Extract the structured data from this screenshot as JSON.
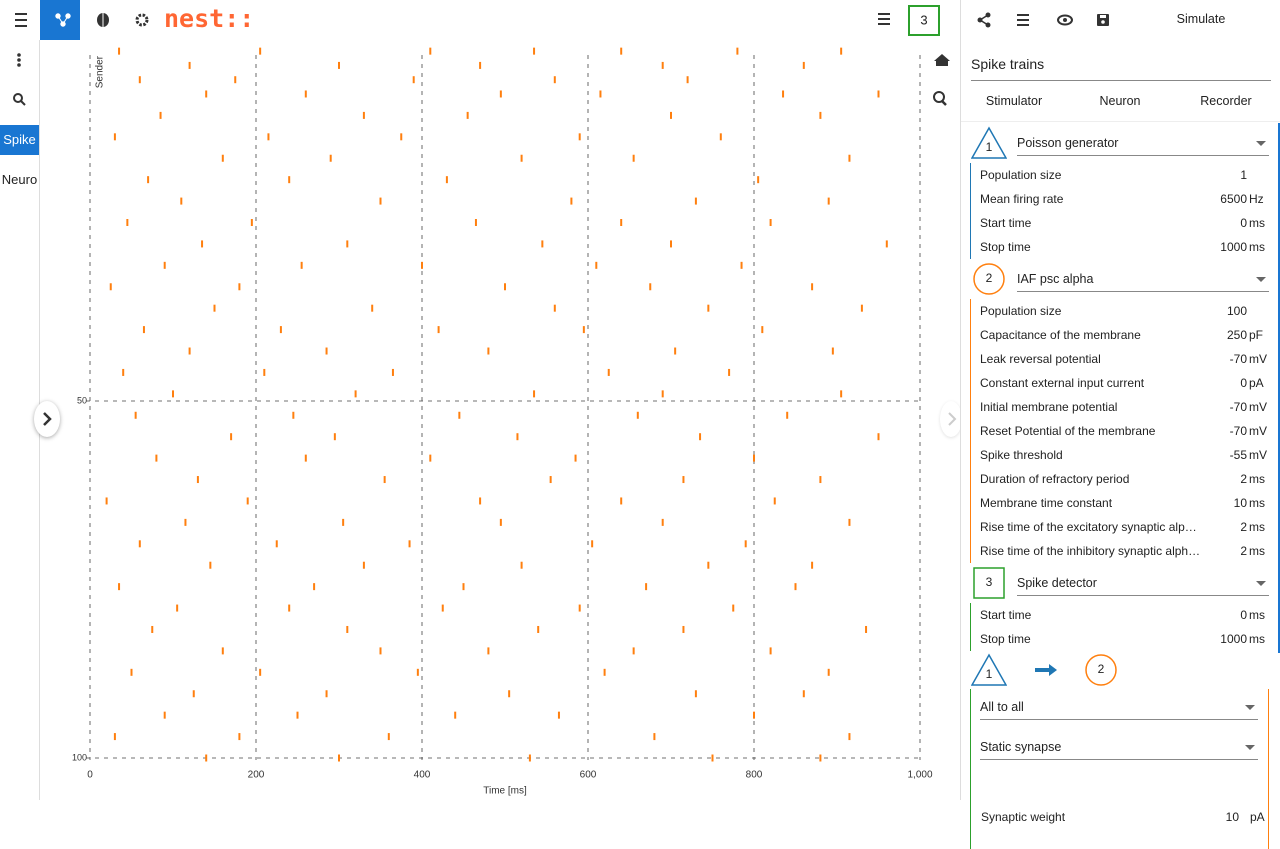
{
  "app": {
    "logo": "nest::",
    "sidebar": [
      "Spike",
      "Neuro"
    ],
    "badge": "3"
  },
  "chart_data": {
    "type": "scatter",
    "x_label": "Time [ms]",
    "y_label": "Sender",
    "color": "#ff7f0e",
    "xlim": [
      0,
      1000
    ],
    "ylim": [
      0,
      100
    ],
    "y_inverted": true,
    "grid": true,
    "xticks": [
      0,
      200,
      400,
      600,
      800,
      {
        "value": 1000,
        "label": "1,000"
      }
    ],
    "yticks": [
      50,
      100
    ],
    "x": [
      35,
      205,
      410,
      535,
      640,
      780,
      905,
      120,
      300,
      470,
      690,
      860,
      60,
      175,
      390,
      560,
      720,
      140,
      260,
      495,
      615,
      835,
      950,
      85,
      330,
      455,
      700,
      880,
      30,
      215,
      375,
      590,
      760,
      160,
      290,
      520,
      655,
      915,
      70,
      240,
      430,
      805,
      110,
      350,
      580,
      730,
      890,
      45,
      195,
      465,
      640,
      820,
      135,
      310,
      545,
      700,
      960,
      90,
      255,
      400,
      610,
      785,
      25,
      180,
      500,
      675,
      870,
      150,
      340,
      560,
      745,
      930,
      65,
      230,
      420,
      595,
      810,
      120,
      285,
      480,
      705,
      895,
      40,
      210,
      365,
      625,
      770,
      100,
      320,
      535,
      690,
      905,
      55,
      245,
      445,
      660,
      840,
      170,
      295,
      515,
      735,
      950,
      80,
      260,
      410,
      585,
      800,
      130,
      355,
      555,
      715,
      880,
      20,
      190,
      470,
      640,
      825,
      115,
      305,
      495,
      690,
      915,
      60,
      225,
      385,
      605,
      790,
      145,
      330,
      520,
      745,
      870,
      35,
      270,
      450,
      670,
      850,
      105,
      240,
      425,
      590,
      775,
      75,
      310,
      540,
      715,
      935,
      160,
      350,
      480,
      655,
      820,
      50,
      205,
      395,
      620,
      890,
      125,
      285,
      505,
      730,
      860,
      90,
      250,
      440,
      565,
      800,
      30,
      180,
      360,
      680,
      915,
      140,
      300,
      530,
      750,
      880
    ],
    "values": [
      1,
      1,
      1,
      1,
      1,
      1,
      1,
      3,
      3,
      3,
      3,
      3,
      5,
      5,
      5,
      5,
      5,
      7,
      7,
      7,
      7,
      7,
      7,
      10,
      10,
      10,
      10,
      10,
      13,
      13,
      13,
      13,
      13,
      16,
      16,
      16,
      16,
      16,
      19,
      19,
      19,
      19,
      22,
      22,
      22,
      22,
      22,
      25,
      25,
      25,
      25,
      25,
      28,
      28,
      28,
      28,
      28,
      31,
      31,
      31,
      31,
      31,
      34,
      34,
      34,
      34,
      34,
      37,
      37,
      37,
      37,
      37,
      40,
      40,
      40,
      40,
      40,
      43,
      43,
      43,
      43,
      43,
      46,
      46,
      46,
      46,
      46,
      49,
      49,
      49,
      49,
      49,
      52,
      52,
      52,
      52,
      52,
      55,
      55,
      55,
      55,
      55,
      58,
      58,
      58,
      58,
      58,
      61,
      61,
      61,
      61,
      61,
      64,
      64,
      64,
      64,
      64,
      67,
      67,
      67,
      67,
      67,
      70,
      70,
      70,
      70,
      70,
      73,
      73,
      73,
      73,
      73,
      76,
      76,
      76,
      76,
      76,
      79,
      79,
      79,
      79,
      79,
      82,
      82,
      82,
      82,
      82,
      85,
      85,
      85,
      85,
      85,
      88,
      88,
      88,
      88,
      88,
      91,
      91,
      91,
      91,
      91,
      94,
      94,
      94,
      94,
      94,
      97,
      97,
      97,
      97,
      97,
      100,
      100,
      100,
      100,
      100
    ]
  },
  "panel": {
    "simulate": "Simulate",
    "title": "Spike trains",
    "tabs": [
      "Stimulator",
      "Neuron",
      "Recorder"
    ],
    "nodes": [
      {
        "label": "1",
        "model": "Poisson generator",
        "params": [
          {
            "name": "Population size",
            "value": 1
          },
          {
            "name": "Mean firing rate",
            "value": 6500,
            "unit": "Hz"
          },
          {
            "name": "Start time",
            "value": 0,
            "unit": "ms"
          },
          {
            "name": "Stop time",
            "value": 1000,
            "unit": "ms"
          }
        ]
      },
      {
        "label": "2",
        "model": "IAF psc alpha",
        "params": [
          {
            "name": "Population size",
            "value": 100
          },
          {
            "name": "Capacitance of the membrane",
            "value": 250,
            "unit": "pF"
          },
          {
            "name": "Leak reversal potential",
            "value": -70,
            "unit": "mV"
          },
          {
            "name": "Constant external input current",
            "value": 0,
            "unit": "pA"
          },
          {
            "name": "Initial membrane potential",
            "value": -70,
            "unit": "mV"
          },
          {
            "name": "Reset Potential of the membrane",
            "value": -70,
            "unit": "mV"
          },
          {
            "name": "Spike threshold",
            "value": -55,
            "unit": "mV"
          },
          {
            "name": "Duration of refractory period",
            "value": 2,
            "unit": "ms"
          },
          {
            "name": "Membrane time constant",
            "value": 10,
            "unit": "ms"
          },
          {
            "name": "Rise time of the excitatory synaptic alpha function",
            "value": 2,
            "unit": "ms"
          },
          {
            "name": "Rise time of the inhibitory synaptic alpha function",
            "value": 2,
            "unit": "ms"
          }
        ]
      },
      {
        "label": "3",
        "model": "Spike detector",
        "params": [
          {
            "name": "Start time",
            "value": 0,
            "unit": "ms"
          },
          {
            "name": "Stop time",
            "value": 1000,
            "unit": "ms"
          }
        ]
      }
    ],
    "connection": {
      "source": "1",
      "target": "2",
      "rule": "All to all",
      "synapse": "Static synapse",
      "params": [
        {
          "name": "Synaptic weight",
          "value": 10,
          "unit": "pA"
        }
      ]
    }
  }
}
